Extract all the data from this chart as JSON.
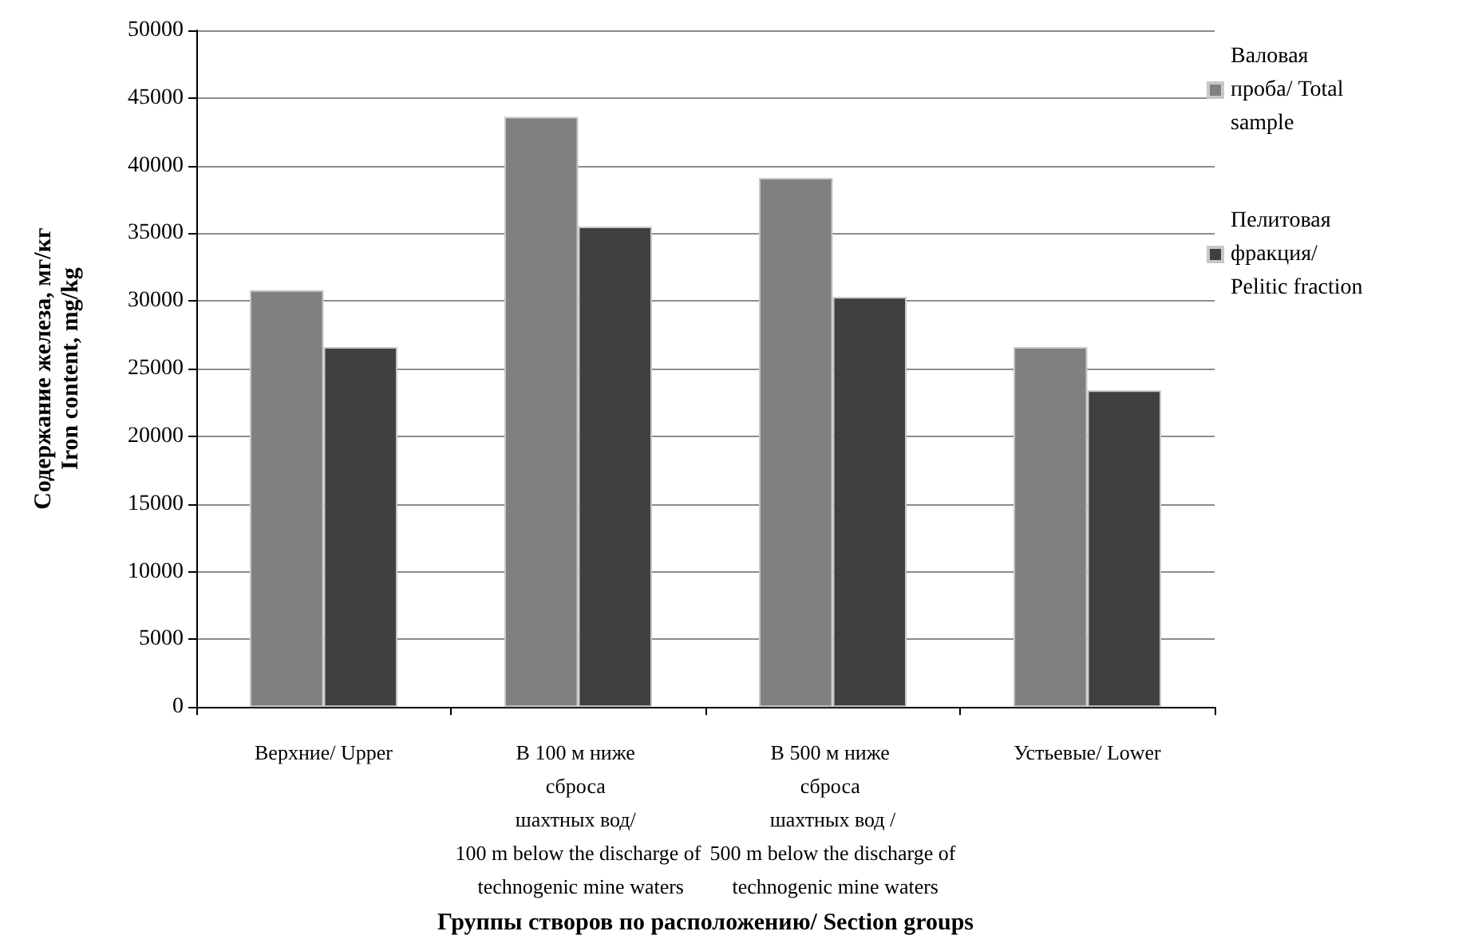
{
  "chart_data": {
    "type": "bar",
    "xlabel": "Группы створов по расположению/ Section groups",
    "ylabel": "Содержание железа, мг/кг\nIron content, mg/kg",
    "categories": [
      "Верхние/ Upper",
      "В 100 м ниже сброса шахтных вод/ 100 m below the discharge of technogenic mine waters",
      "В 500 м ниже сброса шахтных вод /500 m below the discharge of technogenic mine waters",
      "Устьевые/ Lower"
    ],
    "series": [
      {
        "name": "Валовая проба/ Total sample",
        "color": "#808080",
        "values": [
          30800,
          43600,
          39100,
          26600
        ]
      },
      {
        "name": "Пелитовая фракция/ Pelitic fraction",
        "color": "#404040",
        "values": [
          26600,
          35500,
          30300,
          23400
        ]
      }
    ],
    "ylim": [
      0,
      50000
    ],
    "yticks": [
      0,
      5000,
      10000,
      15000,
      20000,
      25000,
      30000,
      35000,
      40000,
      45000,
      50000
    ],
    "grid": "y",
    "legend": "right"
  }
}
